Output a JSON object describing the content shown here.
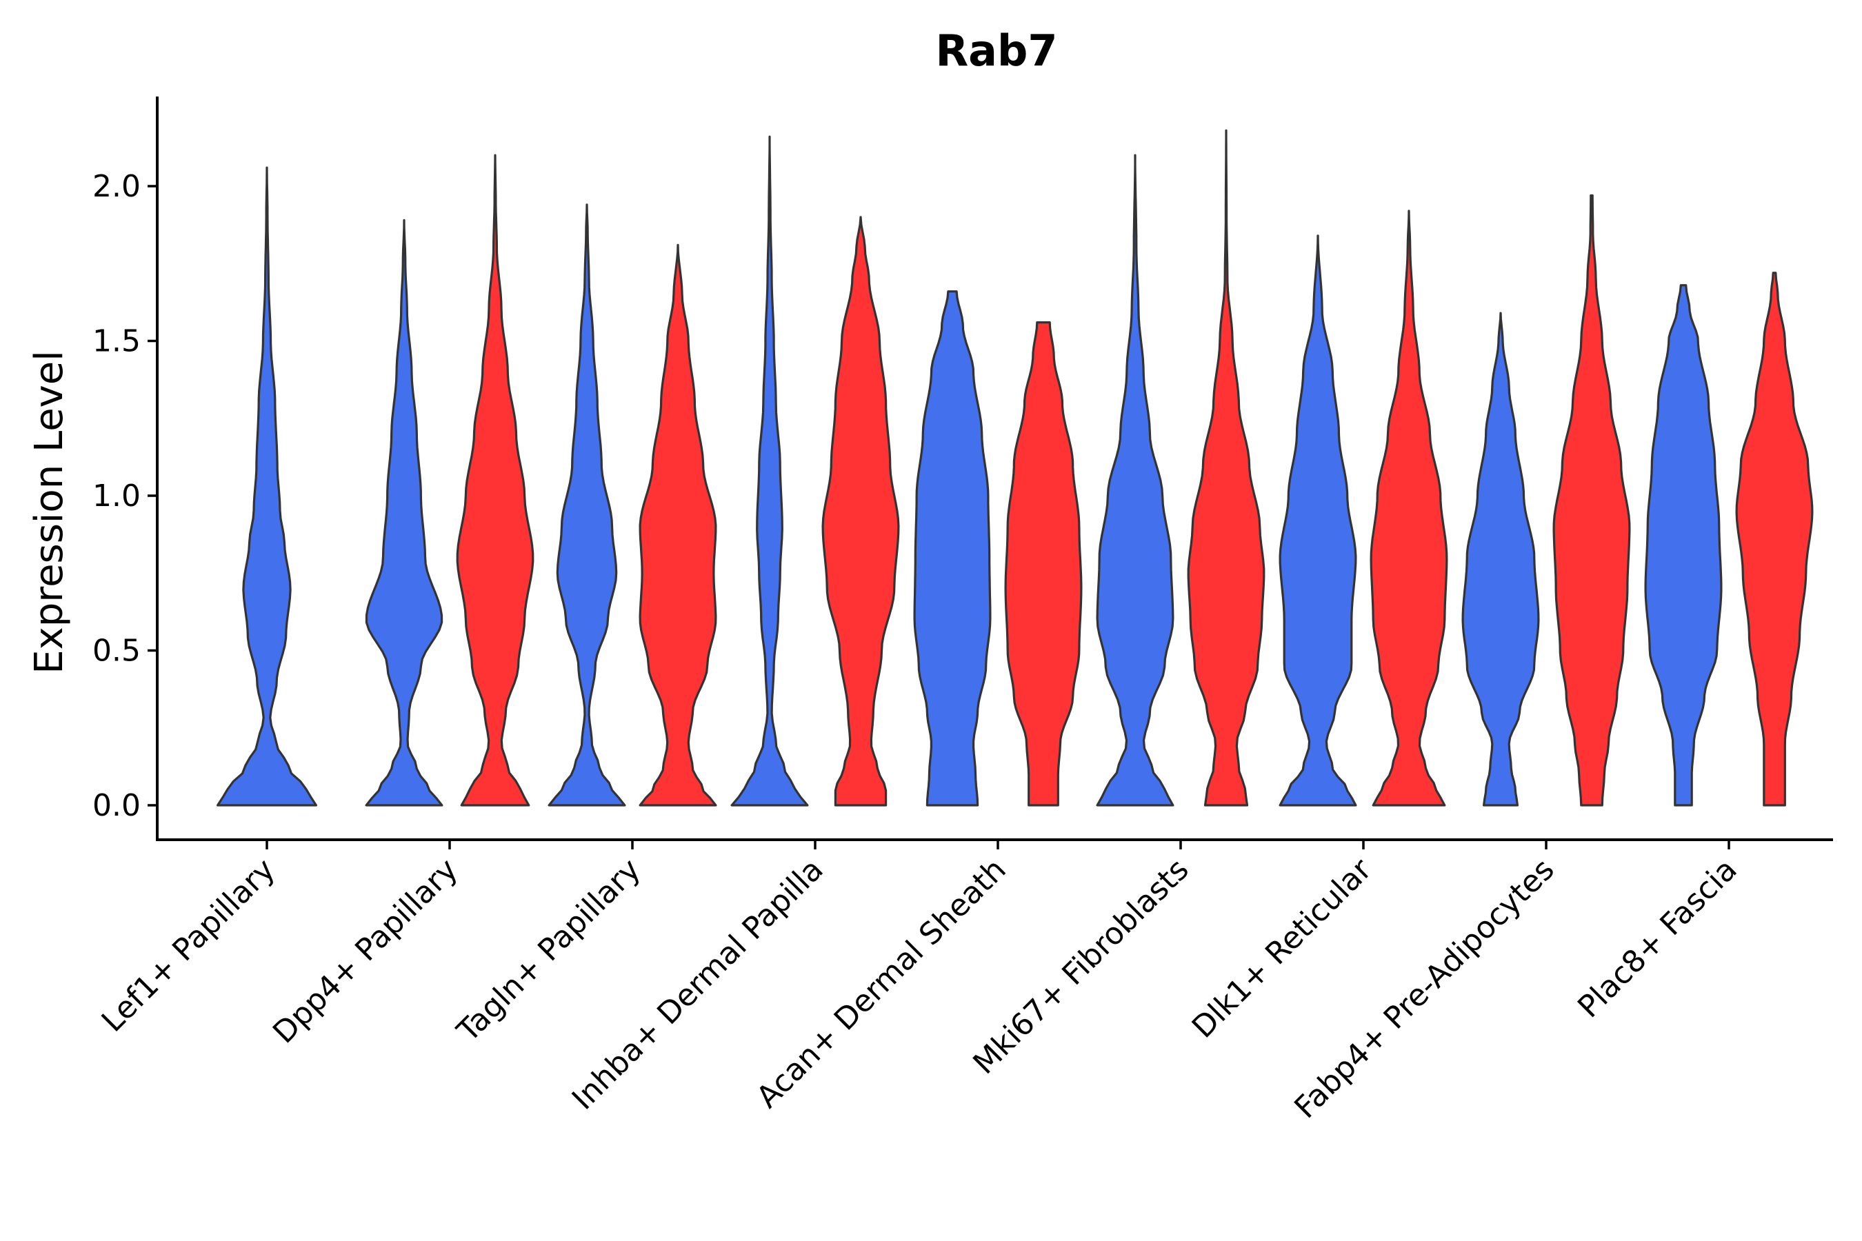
{
  "chart_data": {
    "type": "violin",
    "title": "Rab7",
    "xlabel": "",
    "ylabel": "Expression Level",
    "ylim": [
      -0.11,
      2.29
    ],
    "yticks": [
      0.0,
      0.5,
      1.0,
      1.5,
      2.0
    ],
    "ytick_labels": [
      "0.0",
      "0.5",
      "1.0",
      "1.5",
      "2.0"
    ],
    "grid": false,
    "legend": "none",
    "series": [
      {
        "name": "group-blue",
        "color": "#4370EC"
      },
      {
        "name": "group-red",
        "color": "#FF3333"
      }
    ],
    "categories": [
      "Lef1+ Papillary",
      "Dpp4+ Papillary",
      "Tagln+ Papillary",
      "Inhba+ Dermal Papilla",
      "Acan+ Dermal Sheath",
      "Mki67+ Fibroblasts",
      "Dlk1+ Reticular",
      "Fabp4+ Pre-Adipocytes",
      "Plac8+ Fascia"
    ],
    "violins": [
      {
        "category": "Lef1+ Papillary",
        "series": "group-blue",
        "max": 2.06,
        "profile": [
          [
            0,
            0.9
          ],
          [
            0.05,
            0.72
          ],
          [
            0.12,
            0.4
          ],
          [
            0.2,
            0.17
          ],
          [
            0.28,
            0.06
          ],
          [
            0.4,
            0.18
          ],
          [
            0.55,
            0.35
          ],
          [
            0.7,
            0.43
          ],
          [
            0.85,
            0.32
          ],
          [
            0.95,
            0.24
          ],
          [
            1.1,
            0.19
          ],
          [
            1.3,
            0.15
          ],
          [
            1.5,
            0.07
          ],
          [
            1.7,
            0.03
          ],
          [
            1.9,
            0.012
          ],
          [
            2.06,
            0
          ]
        ]
      },
      {
        "category": "Dpp4+ Papillary",
        "series": "group-blue",
        "max": 1.89,
        "profile": [
          [
            0,
            0.9
          ],
          [
            0.05,
            0.6
          ],
          [
            0.12,
            0.3
          ],
          [
            0.2,
            0.08
          ],
          [
            0.3,
            0.12
          ],
          [
            0.45,
            0.4
          ],
          [
            0.6,
            0.9
          ],
          [
            0.8,
            0.5
          ],
          [
            1.0,
            0.4
          ],
          [
            1.2,
            0.3
          ],
          [
            1.4,
            0.18
          ],
          [
            1.6,
            0.07
          ],
          [
            1.75,
            0.03
          ],
          [
            1.89,
            0
          ]
        ]
      },
      {
        "category": "Dpp4+ Papillary",
        "series": "group-red",
        "max": 2.1,
        "profile": [
          [
            0,
            0.8
          ],
          [
            0.05,
            0.6
          ],
          [
            0.12,
            0.3
          ],
          [
            0.2,
            0.15
          ],
          [
            0.3,
            0.25
          ],
          [
            0.45,
            0.55
          ],
          [
            0.6,
            0.7
          ],
          [
            0.8,
            0.9
          ],
          [
            1.0,
            0.7
          ],
          [
            1.2,
            0.5
          ],
          [
            1.4,
            0.3
          ],
          [
            1.6,
            0.15
          ],
          [
            1.8,
            0.04
          ],
          [
            1.95,
            0.015
          ],
          [
            2.1,
            0
          ]
        ]
      },
      {
        "category": "Tagln+ Papillary",
        "series": "group-blue",
        "max": 1.94,
        "profile": [
          [
            0,
            0.9
          ],
          [
            0.05,
            0.6
          ],
          [
            0.12,
            0.3
          ],
          [
            0.2,
            0.12
          ],
          [
            0.3,
            0.05
          ],
          [
            0.45,
            0.2
          ],
          [
            0.6,
            0.5
          ],
          [
            0.75,
            0.7
          ],
          [
            0.9,
            0.6
          ],
          [
            1.1,
            0.35
          ],
          [
            1.3,
            0.25
          ],
          [
            1.5,
            0.15
          ],
          [
            1.7,
            0.05
          ],
          [
            1.85,
            0.02
          ],
          [
            1.94,
            0
          ]
        ]
      },
      {
        "category": "Tagln+ Papillary",
        "series": "group-red",
        "max": 1.81,
        "profile": [
          [
            0,
            0.9
          ],
          [
            0.05,
            0.6
          ],
          [
            0.12,
            0.35
          ],
          [
            0.2,
            0.25
          ],
          [
            0.3,
            0.35
          ],
          [
            0.45,
            0.7
          ],
          [
            0.6,
            0.9
          ],
          [
            0.75,
            0.85
          ],
          [
            0.9,
            0.9
          ],
          [
            1.1,
            0.6
          ],
          [
            1.3,
            0.4
          ],
          [
            1.5,
            0.25
          ],
          [
            1.65,
            0.1
          ],
          [
            1.81,
            0
          ]
        ]
      },
      {
        "category": "Inhba+ Dermal Papilla",
        "series": "group-blue",
        "max": 2.16,
        "profile": [
          [
            0,
            0.9
          ],
          [
            0.05,
            0.6
          ],
          [
            0.12,
            0.35
          ],
          [
            0.2,
            0.15
          ],
          [
            0.3,
            0.05
          ],
          [
            0.45,
            0.1
          ],
          [
            0.6,
            0.2
          ],
          [
            0.75,
            0.25
          ],
          [
            0.9,
            0.3
          ],
          [
            1.1,
            0.25
          ],
          [
            1.3,
            0.15
          ],
          [
            1.5,
            0.1
          ],
          [
            1.7,
            0.05
          ],
          [
            1.9,
            0.02
          ],
          [
            2.16,
            0
          ]
        ]
      },
      {
        "category": "Inhba+ Dermal Papilla",
        "series": "group-red",
        "max": 1.9,
        "profile": [
          [
            0,
            0.6
          ],
          [
            0.05,
            0.6
          ],
          [
            0.12,
            0.4
          ],
          [
            0.2,
            0.25
          ],
          [
            0.3,
            0.3
          ],
          [
            0.5,
            0.5
          ],
          [
            0.7,
            0.8
          ],
          [
            0.9,
            0.9
          ],
          [
            1.1,
            0.7
          ],
          [
            1.3,
            0.6
          ],
          [
            1.5,
            0.45
          ],
          [
            1.7,
            0.2
          ],
          [
            1.8,
            0.1
          ],
          [
            1.9,
            0
          ]
        ]
      },
      {
        "category": "Acan+ Dermal Sheath",
        "series": "group-blue",
        "max": 1.66,
        "profile": [
          [
            0,
            0.6
          ],
          [
            0.1,
            0.55
          ],
          [
            0.2,
            0.5
          ],
          [
            0.3,
            0.6
          ],
          [
            0.45,
            0.8
          ],
          [
            0.6,
            0.9
          ],
          [
            0.8,
            0.88
          ],
          [
            1.0,
            0.85
          ],
          [
            1.2,
            0.7
          ],
          [
            1.4,
            0.5
          ],
          [
            1.55,
            0.25
          ],
          [
            1.66,
            0.1
          ]
        ]
      },
      {
        "category": "Acan+ Dermal Sheath",
        "series": "group-red",
        "max": 1.56,
        "profile": [
          [
            0,
            0.35
          ],
          [
            0.1,
            0.35
          ],
          [
            0.2,
            0.4
          ],
          [
            0.35,
            0.7
          ],
          [
            0.5,
            0.85
          ],
          [
            0.7,
            0.9
          ],
          [
            0.9,
            0.85
          ],
          [
            1.1,
            0.7
          ],
          [
            1.3,
            0.45
          ],
          [
            1.45,
            0.25
          ],
          [
            1.56,
            0.15
          ]
        ]
      },
      {
        "category": "Mki67+ Fibroblasts",
        "series": "group-blue",
        "max": 2.1,
        "profile": [
          [
            0,
            0.9
          ],
          [
            0.05,
            0.7
          ],
          [
            0.12,
            0.4
          ],
          [
            0.2,
            0.2
          ],
          [
            0.3,
            0.35
          ],
          [
            0.45,
            0.7
          ],
          [
            0.6,
            0.9
          ],
          [
            0.8,
            0.85
          ],
          [
            1.0,
            0.65
          ],
          [
            1.2,
            0.35
          ],
          [
            1.4,
            0.2
          ],
          [
            1.6,
            0.08
          ],
          [
            1.8,
            0.03
          ],
          [
            2.1,
            0
          ]
        ]
      },
      {
        "category": "Mki67+ Fibroblasts",
        "series": "group-red",
        "max": 2.18,
        "profile": [
          [
            0,
            0.5
          ],
          [
            0.05,
            0.45
          ],
          [
            0.12,
            0.3
          ],
          [
            0.2,
            0.25
          ],
          [
            0.3,
            0.45
          ],
          [
            0.45,
            0.75
          ],
          [
            0.6,
            0.85
          ],
          [
            0.75,
            0.9
          ],
          [
            0.9,
            0.8
          ],
          [
            1.1,
            0.55
          ],
          [
            1.3,
            0.3
          ],
          [
            1.5,
            0.15
          ],
          [
            1.7,
            0.03
          ],
          [
            1.9,
            0.01
          ],
          [
            2.18,
            0
          ]
        ]
      },
      {
        "category": "Dlk1+ Reticular",
        "series": "group-blue",
        "max": 1.84,
        "profile": [
          [
            0,
            0.9
          ],
          [
            0.05,
            0.7
          ],
          [
            0.12,
            0.35
          ],
          [
            0.2,
            0.2
          ],
          [
            0.3,
            0.4
          ],
          [
            0.45,
            0.8
          ],
          [
            0.6,
            0.8
          ],
          [
            0.8,
            0.9
          ],
          [
            1.0,
            0.7
          ],
          [
            1.2,
            0.5
          ],
          [
            1.4,
            0.35
          ],
          [
            1.6,
            0.1
          ],
          [
            1.84,
            0
          ]
        ]
      },
      {
        "category": "Dlk1+ Reticular",
        "series": "group-red",
        "max": 1.92,
        "profile": [
          [
            0,
            0.85
          ],
          [
            0.05,
            0.65
          ],
          [
            0.12,
            0.4
          ],
          [
            0.2,
            0.25
          ],
          [
            0.3,
            0.4
          ],
          [
            0.45,
            0.7
          ],
          [
            0.6,
            0.85
          ],
          [
            0.8,
            0.9
          ],
          [
            1.0,
            0.75
          ],
          [
            1.2,
            0.5
          ],
          [
            1.4,
            0.25
          ],
          [
            1.6,
            0.1
          ],
          [
            1.8,
            0.03
          ],
          [
            1.92,
            0
          ]
        ]
      },
      {
        "category": "Fabp4+ Pre-Adipocytes",
        "series": "group-blue",
        "max": 1.59,
        "profile": [
          [
            0,
            0.4
          ],
          [
            0.05,
            0.35
          ],
          [
            0.12,
            0.25
          ],
          [
            0.2,
            0.2
          ],
          [
            0.3,
            0.45
          ],
          [
            0.45,
            0.8
          ],
          [
            0.6,
            0.9
          ],
          [
            0.8,
            0.8
          ],
          [
            1.0,
            0.55
          ],
          [
            1.2,
            0.35
          ],
          [
            1.35,
            0.2
          ],
          [
            1.5,
            0.05
          ],
          [
            1.59,
            0
          ]
        ]
      },
      {
        "category": "Fabp4+ Pre-Adipocytes",
        "series": "group-red",
        "max": 1.97,
        "profile": [
          [
            0,
            0.25
          ],
          [
            0.1,
            0.3
          ],
          [
            0.2,
            0.4
          ],
          [
            0.35,
            0.6
          ],
          [
            0.5,
            0.75
          ],
          [
            0.7,
            0.85
          ],
          [
            0.9,
            0.9
          ],
          [
            1.1,
            0.7
          ],
          [
            1.3,
            0.45
          ],
          [
            1.5,
            0.25
          ],
          [
            1.7,
            0.1
          ],
          [
            1.85,
            0.03
          ],
          [
            1.97,
            0.02
          ]
        ]
      },
      {
        "category": "Plac8+ Fascia",
        "series": "group-blue",
        "max": 1.68,
        "profile": [
          [
            0,
            0.2
          ],
          [
            0.1,
            0.2
          ],
          [
            0.2,
            0.25
          ],
          [
            0.35,
            0.5
          ],
          [
            0.5,
            0.8
          ],
          [
            0.7,
            0.9
          ],
          [
            0.9,
            0.85
          ],
          [
            1.1,
            0.75
          ],
          [
            1.3,
            0.6
          ],
          [
            1.5,
            0.35
          ],
          [
            1.6,
            0.15
          ],
          [
            1.68,
            0.06
          ]
        ]
      },
      {
        "category": "Plac8+ Fascia",
        "series": "group-red",
        "max": 1.72,
        "profile": [
          [
            0,
            0.25
          ],
          [
            0.1,
            0.25
          ],
          [
            0.2,
            0.25
          ],
          [
            0.35,
            0.4
          ],
          [
            0.55,
            0.6
          ],
          [
            0.75,
            0.75
          ],
          [
            0.95,
            0.9
          ],
          [
            1.1,
            0.8
          ],
          [
            1.3,
            0.45
          ],
          [
            1.5,
            0.25
          ],
          [
            1.65,
            0.08
          ],
          [
            1.72,
            0.03
          ]
        ]
      }
    ]
  }
}
